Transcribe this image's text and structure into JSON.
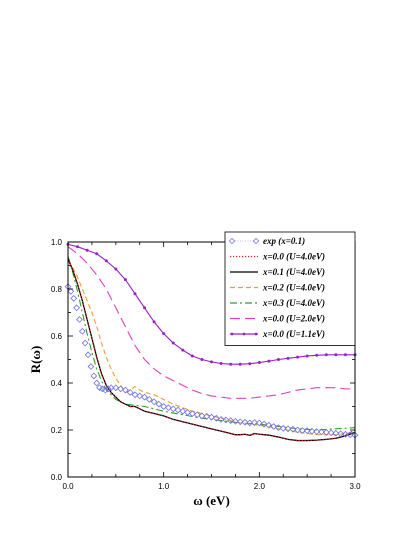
{
  "chart_data": {
    "type": "line",
    "title": "",
    "xlabel": "ω (eV)",
    "ylabel": "R(ω)",
    "xlim": [
      0.0,
      3.0
    ],
    "ylim": [
      0.0,
      1.0
    ],
    "xticks": [
      0.0,
      1.0,
      2.0,
      3.0
    ],
    "xtick_labels": [
      "0.0",
      "1.0",
      "2.0",
      "3.0"
    ],
    "yticks": [
      0.0,
      0.2,
      0.4,
      0.6,
      0.8,
      1.0
    ],
    "ytick_labels": [
      "0.0",
      "0.2",
      "0.4",
      "0.6",
      "0.8",
      "1.0"
    ],
    "grid": false,
    "legend_position": "top-right",
    "series": [
      {
        "name": "exp (x=0.1)",
        "color": "#6f6fe6",
        "style": "markers",
        "marker": "diamond-open",
        "x": [
          0.0,
          0.03,
          0.06,
          0.09,
          0.12,
          0.15,
          0.18,
          0.21,
          0.24,
          0.27,
          0.3,
          0.33,
          0.36,
          0.39,
          0.42,
          0.45,
          0.5,
          0.55,
          0.6,
          0.65,
          0.7,
          0.75,
          0.8,
          0.85,
          0.9,
          0.95,
          1.0,
          1.05,
          1.1,
          1.15,
          1.2,
          1.25,
          1.3,
          1.35,
          1.4,
          1.45,
          1.5,
          1.55,
          1.6,
          1.65,
          1.7,
          1.75,
          1.8,
          1.85,
          1.9,
          1.95,
          2.0,
          2.05,
          2.1,
          2.15,
          2.2,
          2.25,
          2.3,
          2.35,
          2.4,
          2.45,
          2.5,
          2.55,
          2.6,
          2.65,
          2.7,
          2.75,
          2.8,
          2.85,
          2.9,
          2.95,
          3.0
        ],
        "y": [
          0.81,
          0.79,
          0.76,
          0.72,
          0.67,
          0.62,
          0.57,
          0.52,
          0.47,
          0.43,
          0.4,
          0.38,
          0.375,
          0.37,
          0.375,
          0.38,
          0.38,
          0.375,
          0.37,
          0.36,
          0.35,
          0.345,
          0.34,
          0.33,
          0.32,
          0.31,
          0.3,
          0.295,
          0.29,
          0.285,
          0.28,
          0.275,
          0.27,
          0.265,
          0.26,
          0.258,
          0.255,
          0.25,
          0.245,
          0.243,
          0.24,
          0.237,
          0.235,
          0.233,
          0.23,
          0.232,
          0.23,
          0.225,
          0.22,
          0.215,
          0.21,
          0.207,
          0.205,
          0.203,
          0.2,
          0.198,
          0.197,
          0.195,
          0.193,
          0.192,
          0.19,
          0.188,
          0.186,
          0.184,
          0.182,
          0.18,
          0.178
        ]
      },
      {
        "name": "x=0.0 (U=4.0eV)",
        "color": "#e02020",
        "style": "dotted",
        "x": [
          0.0,
          0.05,
          0.1,
          0.15,
          0.2,
          0.25,
          0.3,
          0.35,
          0.4,
          0.45,
          0.5,
          0.55,
          0.6,
          0.65,
          0.7,
          0.75,
          0.8,
          0.9,
          1.0,
          1.1,
          1.2,
          1.3,
          1.4,
          1.5,
          1.6,
          1.7,
          1.75,
          1.8,
          1.85,
          1.9,
          1.95,
          2.0,
          2.05,
          2.1,
          2.2,
          2.3,
          2.4,
          2.5,
          2.6,
          2.7,
          2.8,
          2.9,
          3.0
        ],
        "y": [
          0.93,
          0.88,
          0.82,
          0.75,
          0.67,
          0.59,
          0.51,
          0.44,
          0.39,
          0.36,
          0.34,
          0.32,
          0.31,
          0.3,
          0.3,
          0.29,
          0.28,
          0.27,
          0.26,
          0.245,
          0.235,
          0.225,
          0.215,
          0.205,
          0.195,
          0.185,
          0.18,
          0.18,
          0.182,
          0.177,
          0.185,
          0.182,
          0.18,
          0.178,
          0.17,
          0.16,
          0.155,
          0.155,
          0.157,
          0.16,
          0.165,
          0.18,
          0.2
        ]
      },
      {
        "name": "x=0.1 (U=4.0eV)",
        "color": "#000000",
        "style": "solid",
        "x": [
          0.0,
          0.05,
          0.1,
          0.15,
          0.2,
          0.25,
          0.3,
          0.35,
          0.4,
          0.45,
          0.5,
          0.55,
          0.6,
          0.65,
          0.7,
          0.75,
          0.8,
          0.9,
          1.0,
          1.1,
          1.2,
          1.3,
          1.4,
          1.5,
          1.6,
          1.7,
          1.75,
          1.8,
          1.85,
          1.9,
          1.95,
          2.0,
          2.05,
          2.1,
          2.2,
          2.3,
          2.4,
          2.5,
          2.6,
          2.7,
          2.8,
          2.9,
          3.0
        ],
        "y": [
          0.93,
          0.88,
          0.82,
          0.75,
          0.67,
          0.59,
          0.51,
          0.44,
          0.39,
          0.36,
          0.34,
          0.32,
          0.31,
          0.3,
          0.3,
          0.29,
          0.28,
          0.27,
          0.26,
          0.245,
          0.235,
          0.225,
          0.215,
          0.205,
          0.195,
          0.185,
          0.18,
          0.18,
          0.182,
          0.177,
          0.185,
          0.182,
          0.18,
          0.178,
          0.17,
          0.16,
          0.155,
          0.155,
          0.157,
          0.16,
          0.165,
          0.175,
          0.19
        ]
      },
      {
        "name": "x=0.2 (U=4.0eV)",
        "color": "#f0a030",
        "style": "dashed",
        "x": [
          0.0,
          0.05,
          0.1,
          0.15,
          0.2,
          0.25,
          0.3,
          0.35,
          0.4,
          0.45,
          0.5,
          0.55,
          0.6,
          0.65,
          0.7,
          0.75,
          0.8,
          0.85,
          0.9,
          1.0,
          1.1,
          1.2,
          1.3,
          1.4,
          1.5,
          1.6,
          1.7,
          1.8,
          1.9,
          2.0,
          2.1,
          2.2,
          2.3,
          2.4,
          2.5,
          2.6,
          2.7,
          2.8,
          2.9,
          3.0
        ],
        "y": [
          0.92,
          0.89,
          0.85,
          0.8,
          0.75,
          0.7,
          0.64,
          0.57,
          0.51,
          0.46,
          0.42,
          0.39,
          0.36,
          0.37,
          0.385,
          0.37,
          0.36,
          0.355,
          0.35,
          0.33,
          0.31,
          0.295,
          0.28,
          0.27,
          0.26,
          0.25,
          0.24,
          0.23,
          0.225,
          0.22,
          0.215,
          0.205,
          0.2,
          0.19,
          0.185,
          0.18,
          0.18,
          0.18,
          0.185,
          0.19
        ]
      },
      {
        "name": "x=0.3 (U=4.0eV)",
        "color": "#30a030",
        "style": "dash-dot",
        "x": [
          0.0,
          0.05,
          0.1,
          0.15,
          0.2,
          0.25,
          0.3,
          0.35,
          0.4,
          0.45,
          0.5,
          0.55,
          0.6,
          0.7,
          0.8,
          0.9,
          1.0,
          1.2,
          1.4,
          1.6,
          1.8,
          2.0,
          2.2,
          2.4,
          2.6,
          2.8,
          3.0
        ],
        "y": [
          0.94,
          0.87,
          0.79,
          0.7,
          0.61,
          0.53,
          0.46,
          0.41,
          0.37,
          0.35,
          0.33,
          0.32,
          0.31,
          0.305,
          0.3,
          0.29,
          0.28,
          0.265,
          0.25,
          0.24,
          0.23,
          0.225,
          0.215,
          0.205,
          0.2,
          0.205,
          0.21
        ]
      },
      {
        "name": "x=0.0 (U=2.0eV)",
        "color": "#e040c0",
        "style": "long-dashed",
        "x": [
          0.0,
          0.1,
          0.2,
          0.3,
          0.4,
          0.5,
          0.6,
          0.7,
          0.8,
          0.9,
          1.0,
          1.1,
          1.2,
          1.3,
          1.4,
          1.5,
          1.6,
          1.7,
          1.8,
          1.9,
          2.0,
          2.1,
          2.2,
          2.3,
          2.4,
          2.5,
          2.6,
          2.7,
          2.8,
          2.9,
          3.0
        ],
        "y": [
          0.98,
          0.95,
          0.91,
          0.86,
          0.8,
          0.72,
          0.64,
          0.56,
          0.5,
          0.46,
          0.43,
          0.41,
          0.39,
          0.37,
          0.355,
          0.345,
          0.34,
          0.335,
          0.335,
          0.335,
          0.34,
          0.345,
          0.35,
          0.36,
          0.37,
          0.375,
          0.38,
          0.38,
          0.38,
          0.375,
          0.375
        ]
      },
      {
        "name": "x=0.0 (U=1.1eV)",
        "color": "#9a20c8",
        "style": "line-markers",
        "x": [
          0.0,
          0.1,
          0.2,
          0.3,
          0.4,
          0.5,
          0.6,
          0.7,
          0.8,
          0.9,
          1.0,
          1.1,
          1.2,
          1.3,
          1.4,
          1.5,
          1.6,
          1.7,
          1.8,
          1.9,
          2.0,
          2.1,
          2.2,
          2.3,
          2.4,
          2.5,
          2.6,
          2.7,
          2.8,
          2.9,
          3.0
        ],
        "y": [
          0.99,
          0.98,
          0.965,
          0.95,
          0.92,
          0.885,
          0.84,
          0.78,
          0.72,
          0.66,
          0.61,
          0.57,
          0.54,
          0.515,
          0.5,
          0.49,
          0.483,
          0.48,
          0.48,
          0.482,
          0.487,
          0.493,
          0.5,
          0.505,
          0.51,
          0.515,
          0.518,
          0.52,
          0.52,
          0.52,
          0.52
        ]
      }
    ]
  }
}
